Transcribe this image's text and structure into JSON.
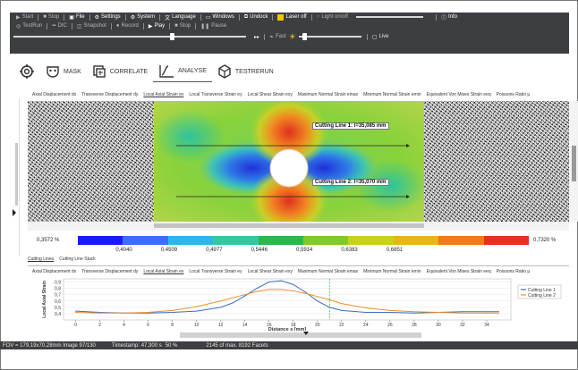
{
  "toolbar": {
    "row1": [
      {
        "icon": "play-icon",
        "label": "Start",
        "dim": true
      },
      {
        "icon": "stop-icon",
        "label": "Stop",
        "dim": true
      },
      {
        "icon": "file-icon",
        "label": "File",
        "dim": false
      },
      {
        "icon": "gear-icon",
        "label": "Settings",
        "dim": false
      },
      {
        "icon": "system-icon",
        "label": "System",
        "dim": false
      },
      {
        "icon": "language-icon",
        "label": "Language",
        "dim": false
      },
      {
        "icon": "windows-icon",
        "label": "Windows",
        "dim": false
      },
      {
        "icon": "undock-icon",
        "label": "Undock",
        "dim": false
      },
      {
        "icon": "laser-icon",
        "label": "Laser off",
        "dim": false
      },
      {
        "icon": "light-icon",
        "label": "Light on/off",
        "dim": true
      }
    ],
    "info_label": "Info",
    "row2": [
      {
        "icon": "testrun-icon",
        "label": "TestRun",
        "dim": true
      },
      {
        "icon": "dic-icon",
        "label": "DIC",
        "dim": true
      },
      {
        "icon": "snapshot-icon",
        "label": "Snapshot",
        "dim": true
      },
      {
        "icon": "record-icon",
        "label": "Record",
        "dim": true
      },
      {
        "icon": "play-icon",
        "label": "Play",
        "dim": false
      },
      {
        "icon": "stop-icon",
        "label": "Stop",
        "dim": true
      },
      {
        "icon": "pause-icon",
        "label": "Pause",
        "dim": true
      }
    ],
    "fast_label": "Fast",
    "live_label": "Live"
  },
  "modes": [
    {
      "icon": "setup-icon",
      "label": "",
      "active": false
    },
    {
      "icon": "mask-icon",
      "label": "MASK",
      "active": false
    },
    {
      "icon": "correlate-icon",
      "label": "CORRELATE",
      "active": false
    },
    {
      "icon": "analyse-icon",
      "label": "ANALYSE",
      "active": true
    },
    {
      "icon": "testrun-icon",
      "label": "TESTRERUN",
      "active": false
    }
  ],
  "result_tabs": [
    "Axial Displacement dx",
    "Transverse Displacement dy",
    "Local Axial Strain ex",
    "Local Transverse Strain ey",
    "Local Shear Strain exy",
    "Maximum Normal Strain emax",
    "Minimum Normal Strain emin",
    "Equivalent Von Mises Strain eeq",
    "Poissons Ratio μ"
  ],
  "result_tab_active": "Local Axial Strain ex",
  "cutting_lines": {
    "line1": "Cutting Line 1: l=35,085 mm",
    "line2": "Cutting Line 2: l=35,070 mm"
  },
  "colorbar": {
    "min_label": "0,3572 %",
    "max_label": "0,7320 %",
    "ticks": [
      "0,4040",
      "0,4509",
      "0,4977",
      "0,5446",
      "0,5914",
      "0,6383",
      "0,6851"
    ],
    "colors": [
      "#1a1aff",
      "#3b6eff",
      "#2fb6e8",
      "#37c7a0",
      "#2fb54a",
      "#7fca2a",
      "#c9d11a",
      "#e8b51a",
      "#ef7a1c",
      "#e83020"
    ]
  },
  "subtabs": {
    "items": [
      "Cutting Lines",
      "Cutting Line Stack"
    ],
    "active": "Cutting Lines"
  },
  "chart_tabs": [
    "Axial Displacement dx",
    "Transverse Displacement dy",
    "Local Axial Strain ex",
    "Local Transverse Strain ey",
    "Local Shear Strain exy",
    "Maximum Normal Strain emax",
    "Minimum Normal Strain emin",
    "Equivalent Von Mises Strain eeq",
    "Poissons Ratio μ"
  ],
  "chart_tab_active": "Local Axial Strain ex",
  "chart_data": {
    "type": "line",
    "ylabel": "Local Axial Strain",
    "xlabel": "Distance s [mm]",
    "xlim": [
      -1,
      36
    ],
    "ylim": [
      0.3,
      0.95
    ],
    "xticks": [
      0,
      2,
      4,
      6,
      8,
      10,
      12,
      14,
      16,
      18,
      20,
      22,
      24,
      26,
      28,
      30,
      32,
      34
    ],
    "yticks": [
      0.4,
      0.5,
      0.6,
      0.7,
      0.8,
      0.9
    ],
    "ytick_labels": [
      "0,4",
      "0,5",
      "0,6",
      "0,7",
      "0,8",
      "0,9"
    ],
    "legend_position": "right",
    "cursor_x": 21,
    "series": [
      {
        "name": "Cutting Line 1",
        "color": "#3a6ec2",
        "x": [
          0,
          2,
          4,
          6,
          8,
          10,
          12,
          13,
          14,
          15,
          16,
          17,
          18,
          19,
          20,
          21,
          22,
          24,
          26,
          28,
          30,
          32,
          34,
          35
        ],
        "y": [
          0.44,
          0.42,
          0.41,
          0.41,
          0.42,
          0.44,
          0.5,
          0.57,
          0.68,
          0.8,
          0.9,
          0.92,
          0.86,
          0.74,
          0.6,
          0.5,
          0.45,
          0.42,
          0.42,
          0.41,
          0.42,
          0.43,
          0.43,
          0.43
        ]
      },
      {
        "name": "Cutting Line 2",
        "color": "#ef8c2c",
        "x": [
          0,
          2,
          4,
          6,
          8,
          10,
          12,
          14,
          15,
          16,
          17,
          18,
          19,
          20,
          21,
          22,
          24,
          26,
          28,
          30,
          32,
          34,
          35
        ],
        "y": [
          0.42,
          0.41,
          0.41,
          0.42,
          0.45,
          0.51,
          0.6,
          0.7,
          0.75,
          0.78,
          0.78,
          0.76,
          0.72,
          0.67,
          0.62,
          0.56,
          0.49,
          0.45,
          0.43,
          0.42,
          0.41,
          0.41,
          0.41
        ]
      }
    ]
  },
  "status": {
    "fov": "FOV = 179,19x70,28mm Image 97/130",
    "timestamp": "Timestamp: 47,300 s",
    "zoom": "50 %",
    "facets": "2145 of max. 8192 Facets"
  }
}
